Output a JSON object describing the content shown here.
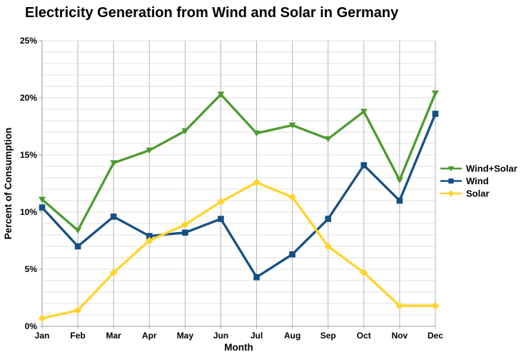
{
  "chart_data": {
    "type": "line",
    "title": "Electricity Generation from Wind and Solar in Germany",
    "xlabel": "Month",
    "ylabel": "Percent of Consumption",
    "categories": [
      "Jan",
      "Feb",
      "Mar",
      "Apr",
      "May",
      "Jun",
      "Jul",
      "Aug",
      "Sep",
      "Oct",
      "Nov",
      "Dec"
    ],
    "series": [
      {
        "name": "Wind+Solar",
        "color": "#4c9b2f",
        "marker": "triangle-down",
        "values": [
          11.1,
          8.4,
          14.3,
          15.4,
          17.1,
          20.3,
          16.9,
          17.6,
          16.4,
          18.8,
          12.8,
          20.4
        ]
      },
      {
        "name": "Wind",
        "color": "#155084",
        "marker": "square",
        "values": [
          10.4,
          7.0,
          9.6,
          7.9,
          8.2,
          9.4,
          4.3,
          6.3,
          9.4,
          14.1,
          11.0,
          18.6
        ]
      },
      {
        "name": "Solar",
        "color": "#ffd32b",
        "marker": "diamond",
        "values": [
          0.7,
          1.4,
          4.7,
          7.5,
          8.9,
          10.9,
          12.6,
          11.3,
          7.0,
          4.7,
          1.8,
          1.8
        ]
      }
    ],
    "y_ticks": [
      "0%",
      "5%",
      "10%",
      "15%",
      "20%",
      "25%"
    ],
    "ylim": [
      0,
      25
    ],
    "y_major_step": 5,
    "y_minor_step": 1,
    "grid": true,
    "legend_position": "right",
    "colors": {
      "gridline_h": "#e0e0e0",
      "gridline_v": "#b5b5b5",
      "axis": "#9a9a9a",
      "text": "#000000",
      "background": "#ffffff"
    }
  }
}
